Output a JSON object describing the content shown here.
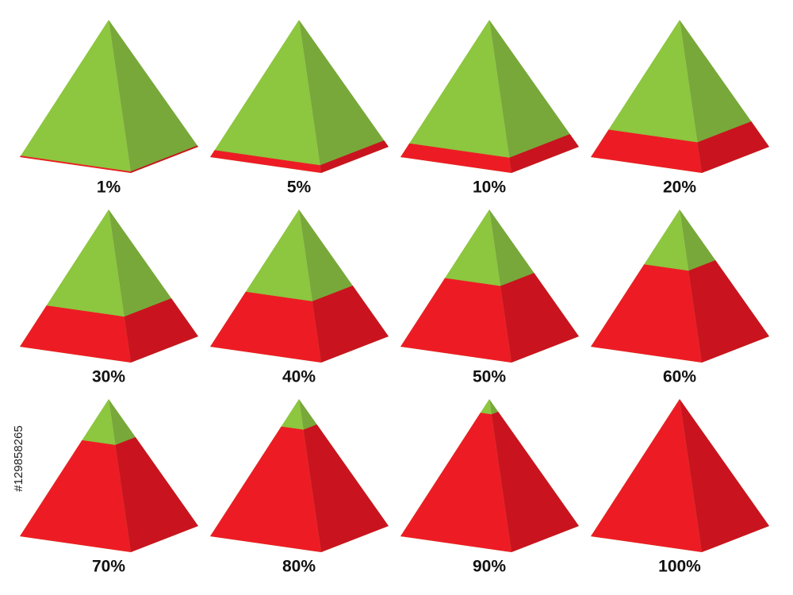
{
  "chart_data": {
    "type": "pyramid",
    "values": [
      1,
      5,
      10,
      20,
      30,
      40,
      50,
      60,
      70,
      80,
      90,
      100
    ],
    "value_labels": [
      "1%",
      "5%",
      "10%",
      "20%",
      "30%",
      "40%",
      "50%",
      "60%",
      "70%",
      "80%",
      "90%",
      "100%"
    ],
    "fill_color": "#ed1c24",
    "fill_shade": "#c9141f",
    "empty_color": "#8dc63f",
    "empty_shade": "#78a83a",
    "ylim": [
      0,
      100
    ],
    "side_text": "#129858265"
  }
}
